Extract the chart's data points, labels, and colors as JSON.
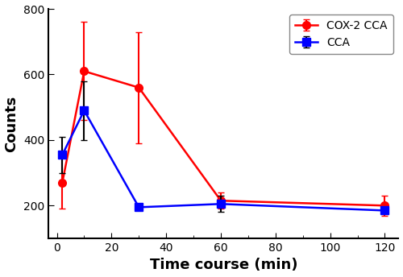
{
  "title": "",
  "xlabel": "Time course (min)",
  "ylabel": "Counts",
  "xlim": [
    -3,
    125
  ],
  "ylim": [
    100,
    800
  ],
  "yticks": [
    200,
    400,
    600,
    800
  ],
  "xticks": [
    0,
    20,
    40,
    60,
    80,
    100,
    120
  ],
  "cox2_x": [
    2,
    10,
    30,
    60,
    120
  ],
  "cox2_y": [
    270,
    610,
    560,
    215,
    200
  ],
  "cox2_yerr": [
    80,
    150,
    170,
    25,
    30
  ],
  "cox2_color": "#ff0000",
  "cox2_label": "COX-2 CCA",
  "cca_x": [
    2,
    10,
    30,
    60,
    120
  ],
  "cca_y": [
    355,
    490,
    195,
    205,
    185
  ],
  "cca_yerr": [
    55,
    90,
    10,
    25,
    10
  ],
  "cca_color": "#0000ff",
  "cca_label": "CCA",
  "marker_size": 7,
  "linewidth": 1.8,
  "capsize": 3,
  "elinewidth": 1.5,
  "legend_fontsize": 10,
  "axis_label_fontsize": 13,
  "tick_fontsize": 10,
  "background_color": "#ffffff"
}
